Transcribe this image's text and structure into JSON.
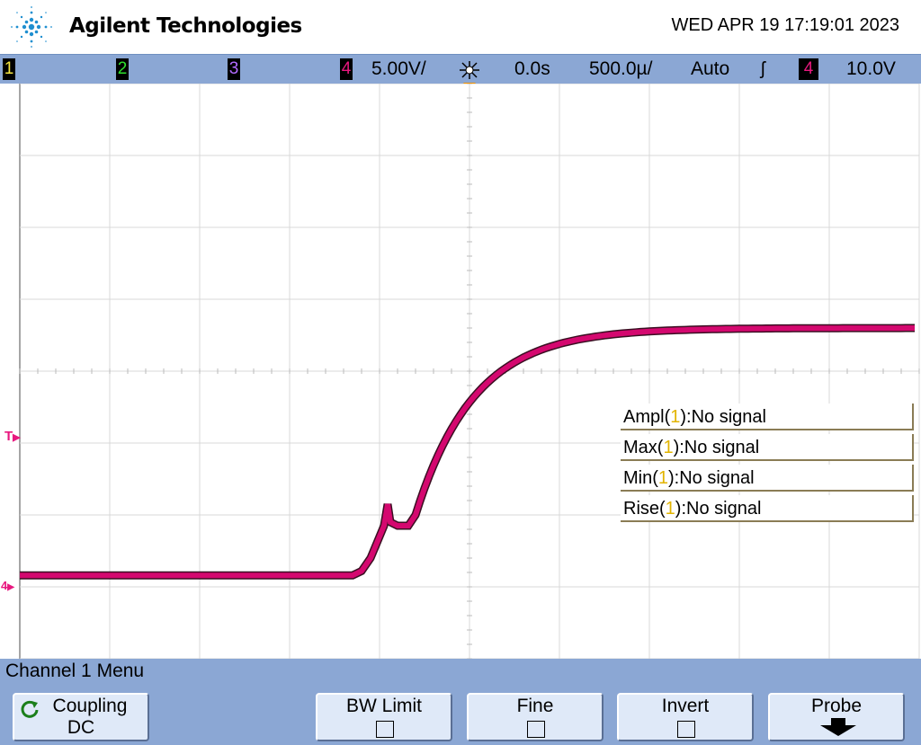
{
  "header": {
    "brand": "Agilent Technologies",
    "datetime": "WED APR 19 17:19:01 2023"
  },
  "status": {
    "ch1": "1",
    "ch2": "2",
    "ch3": "3",
    "ch4": "4",
    "ch4_scale": "5.00V/",
    "time_ref": "0.0s",
    "timebase": "500.0µ/",
    "trigger_mode": "Auto",
    "trigger_slope": "ʃ",
    "trigger_source": "4",
    "trigger_level": "10.0V",
    "colors": {
      "ch1": "#f5e642",
      "ch2": "#2fe02f",
      "ch3": "#b26bff",
      "ch4": "#e8187f"
    }
  },
  "markers": {
    "trigger_level_marker": "T",
    "ch4_ground_marker": "4"
  },
  "measurements": [
    {
      "name": "Ampl(",
      "ch": "1",
      "rest": "):No signal"
    },
    {
      "name": "Max(",
      "ch": "1",
      "rest": "):No signal"
    },
    {
      "name": "Min(",
      "ch": "1",
      "rest": "):No signal"
    },
    {
      "name": "Rise(",
      "ch": "1",
      "rest": "):No signal"
    }
  ],
  "menu": {
    "title": "Channel 1  Menu",
    "softkeys": [
      {
        "label": "Coupling",
        "value": "DC"
      },
      {
        "label": "BW Limit"
      },
      {
        "label": "Fine"
      },
      {
        "label": "Invert"
      },
      {
        "label": "Probe"
      }
    ]
  },
  "waveform": {
    "channel": "4",
    "color": "#d4086f",
    "description_units": "divisions"
  }
}
